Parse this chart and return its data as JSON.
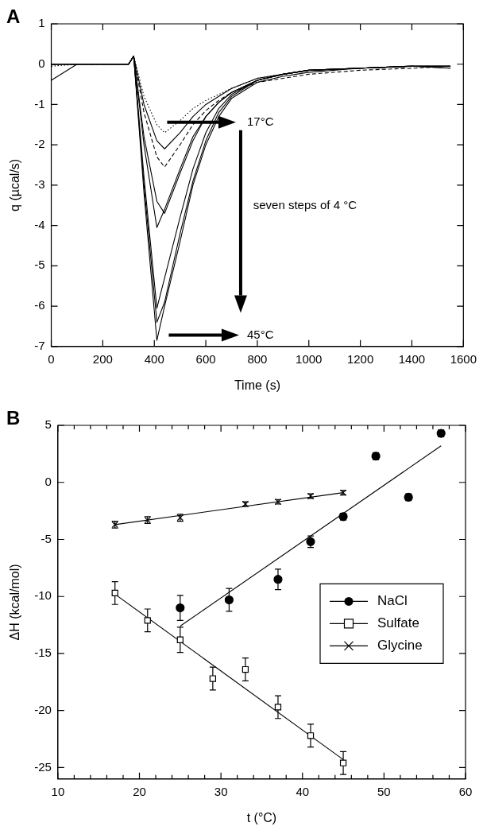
{
  "chart_data": [
    {
      "type": "line",
      "title": "A",
      "xlabel": "Time (s)",
      "ylabel": "q (µcal/s)",
      "xlim": [
        0,
        1600
      ],
      "xticks": [
        0,
        200,
        400,
        600,
        800,
        1000,
        1200,
        1400,
        1600
      ],
      "ylim": [
        -7,
        1
      ],
      "yticks": [
        -7,
        -6,
        -5,
        -4,
        -3,
        -2,
        -1,
        0,
        1
      ],
      "grid": false,
      "legend": false,
      "marker": "none",
      "x": [
        0,
        100,
        200,
        300,
        320,
        360,
        410,
        440,
        500,
        550,
        600,
        650,
        700,
        800,
        900,
        1000,
        1200,
        1400,
        1550
      ],
      "series": [
        {
          "color": "#000000",
          "line_style": "dotted",
          "values": [
            -0.05,
            0,
            0,
            0,
            0.2,
            -0.8,
            -1.5,
            -1.7,
            -1.4,
            -1.1,
            -0.9,
            -0.75,
            -0.6,
            -0.35,
            -0.25,
            -0.15,
            -0.1,
            -0.05,
            -0.05
          ]
        },
        {
          "color": "#000000",
          "line_style": "solid",
          "values": [
            0,
            0,
            0,
            0,
            0.2,
            -1.0,
            -1.9,
            -2.1,
            -1.7,
            -1.3,
            -1.0,
            -0.8,
            -0.6,
            -0.35,
            -0.25,
            -0.15,
            -0.1,
            -0.05,
            -0.05
          ]
        },
        {
          "color": "#000000",
          "line_style": "dashed",
          "values": [
            0,
            0,
            0,
            0,
            0.2,
            -1.2,
            -2.3,
            -2.55,
            -2.0,
            -1.5,
            -1.15,
            -0.9,
            -0.7,
            -0.45,
            -0.35,
            -0.25,
            -0.15,
            -0.1,
            -0.05
          ]
        },
        {
          "color": "#000000",
          "line_style": "solid",
          "values": [
            0,
            0,
            0,
            0,
            0.2,
            -1.8,
            -3.4,
            -3.7,
            -2.7,
            -1.9,
            -1.3,
            -0.95,
            -0.7,
            -0.4,
            -0.25,
            -0.15,
            -0.1,
            -0.05,
            -0.05
          ]
        },
        {
          "color": "#000000",
          "line_style": "solid",
          "values": [
            -0.4,
            0,
            0,
            0,
            0.2,
            -2.0,
            -4.05,
            -3.6,
            -2.6,
            -1.8,
            -1.3,
            -0.95,
            -0.7,
            -0.4,
            -0.25,
            -0.15,
            -0.1,
            -0.05,
            -0.05
          ]
        },
        {
          "color": "#000000",
          "line_style": "solid",
          "values": [
            0,
            0,
            0,
            0,
            0.2,
            -2.8,
            -6.05,
            -5.3,
            -3.8,
            -2.6,
            -1.7,
            -1.1,
            -0.75,
            -0.4,
            -0.25,
            -0.15,
            -0.1,
            -0.05,
            -0.05
          ]
        },
        {
          "color": "#000000",
          "line_style": "solid",
          "values": [
            0,
            0,
            0,
            0,
            0.2,
            -3.0,
            -6.4,
            -5.9,
            -4.2,
            -2.9,
            -1.9,
            -1.2,
            -0.8,
            -0.4,
            -0.25,
            -0.15,
            -0.1,
            -0.05,
            -0.1
          ]
        },
        {
          "color": "#000000",
          "line_style": "solid",
          "values": [
            0,
            0,
            0,
            0,
            0.2,
            -3.2,
            -6.85,
            -6.0,
            -4.4,
            -3.0,
            -2.0,
            -1.3,
            -0.85,
            -0.45,
            -0.3,
            -0.2,
            -0.1,
            -0.05,
            -0.1
          ]
        }
      ],
      "annotations": [
        "17°C",
        "seven steps of 4 °C",
        "45°C"
      ]
    },
    {
      "type": "scatter",
      "title": "B",
      "xlabel": "t (°C)",
      "ylabel": "ΔH (kcal/mol)",
      "xlim": [
        10,
        60
      ],
      "xticks": [
        10,
        {
          "value": 12,
          "label": null
        },
        {
          "value": 14,
          "label": null
        },
        {
          "value": 16,
          "label": null
        },
        {
          "value": 18,
          "label": null
        },
        20,
        {
          "value": 22,
          "label": null
        },
        {
          "value": 24,
          "label": null
        },
        {
          "value": 26,
          "label": null
        },
        {
          "value": 28,
          "label": null
        },
        30,
        {
          "value": 32,
          "label": null
        },
        {
          "value": 34,
          "label": null
        },
        {
          "value": 36,
          "label": null
        },
        {
          "value": 38,
          "label": null
        },
        40,
        {
          "value": 42,
          "label": null
        },
        {
          "value": 44,
          "label": null
        },
        {
          "value": 46,
          "label": null
        },
        {
          "value": 48,
          "label": null
        },
        50,
        {
          "value": 52,
          "label": null
        },
        {
          "value": 54,
          "label": null
        },
        {
          "value": 56,
          "label": null
        },
        {
          "value": 58,
          "label": null
        },
        60
      ],
      "ylim": [
        -26,
        5
      ],
      "yticks": [
        -25,
        -20,
        -15,
        -10,
        -5,
        0,
        5
      ],
      "grid": false,
      "legend": "right",
      "series": [
        {
          "name": "NaCl",
          "type": "scatter",
          "marker": "circle",
          "color": "#000000",
          "x": [
            25,
            31,
            37,
            41,
            45,
            49,
            53,
            57
          ],
          "values": [
            -11.0,
            -10.3,
            -8.5,
            -5.2,
            -3.0,
            2.3,
            -1.3,
            4.3
          ],
          "errors": [
            1.1,
            1.0,
            0.9,
            0.5,
            0.3,
            0.3,
            0.3,
            0.3
          ]
        },
        {
          "name": "Sulfate",
          "type": "scatter",
          "marker": "square",
          "color": "#000000",
          "x": [
            17,
            21,
            25,
            29,
            33,
            37,
            41,
            45
          ],
          "values": [
            -9.7,
            -12.1,
            -13.8,
            -17.2,
            -16.4,
            -19.7,
            -22.2,
            -24.6
          ],
          "errors": [
            1.0,
            1.0,
            1.1,
            1.0,
            1.0,
            1.0,
            1.0,
            1.0
          ]
        },
        {
          "name": "Glycine",
          "type": "scatter",
          "marker": "cross",
          "color": "#000000",
          "x": [
            17,
            21,
            25,
            33,
            37,
            41,
            45
          ],
          "values": [
            -3.7,
            -3.3,
            -3.1,
            -1.9,
            -1.7,
            -1.2,
            -0.9
          ],
          "errors": [
            0.3,
            0.3,
            0.3,
            0.2,
            0.2,
            0.2,
            0.2
          ]
        },
        {
          "type": "line",
          "marker": "none",
          "color": "#000000",
          "x": [
            25,
            57
          ],
          "values": [
            -12.6,
            3.2
          ]
        },
        {
          "type": "line",
          "marker": "none",
          "color": "#000000",
          "x": [
            17,
            45
          ],
          "values": [
            -9.8,
            -24.3
          ]
        },
        {
          "type": "line",
          "marker": "none",
          "color": "#000000",
          "x": [
            17,
            45
          ],
          "values": [
            -3.7,
            -0.9
          ]
        }
      ]
    }
  ]
}
